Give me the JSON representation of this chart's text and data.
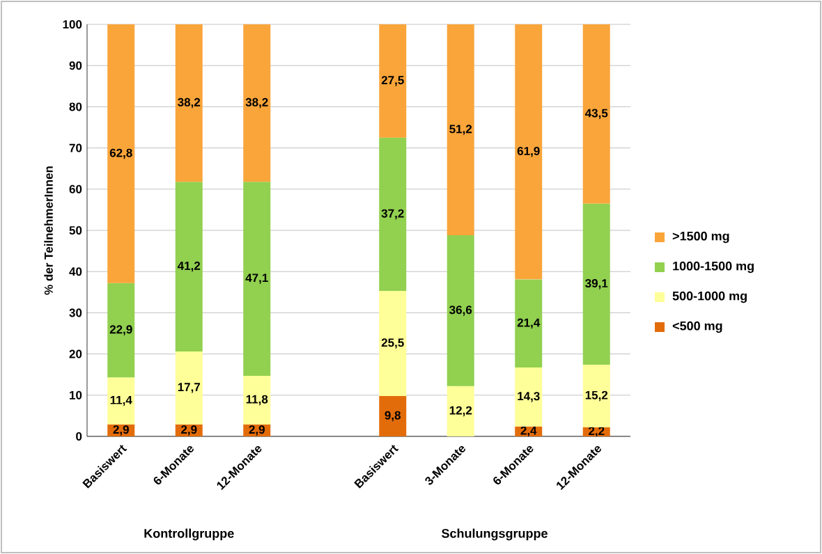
{
  "chart_data": {
    "type": "bar",
    "stacked": true,
    "ylabel": "% der TeilnehmerInnen",
    "categories": [
      "Basiswert",
      "6-Monate",
      "12-Monate",
      null,
      "Basiswert",
      "3-Monate",
      "6-Monate",
      "12-Monate"
    ],
    "series": [
      {
        "name": "<500 mg",
        "color": "#e36c0a",
        "values": [
          2.9,
          2.9,
          2.9,
          null,
          9.8,
          null,
          2.4,
          2.2
        ],
        "value_labels": [
          "2,9",
          "2,9",
          "2,9",
          null,
          "9,8",
          null,
          "2,4",
          "2,2"
        ]
      },
      {
        "name": "500-1000 mg",
        "color": "#ffff99",
        "values": [
          11.4,
          17.7,
          11.8,
          null,
          25.5,
          12.2,
          14.3,
          15.2
        ],
        "value_labels": [
          "11,4",
          "17,7",
          "11,8",
          null,
          "25,5",
          "12,2",
          "14,3",
          "15,2"
        ]
      },
      {
        "name": "1000-1500 mg",
        "color": "#92d050",
        "values": [
          22.9,
          41.2,
          47.1,
          null,
          37.2,
          36.6,
          21.4,
          39.1
        ],
        "value_labels": [
          "22,9",
          "41,2",
          "47,1",
          null,
          "37,2",
          "36,6",
          "21,4",
          "39,1"
        ]
      },
      {
        "name": ">1500 mg",
        "color": "#f9a53a",
        "values": [
          62.8,
          38.2,
          38.2,
          null,
          27.5,
          51.2,
          61.9,
          43.5
        ],
        "value_labels": [
          "62,8",
          "38,2",
          "38,2",
          null,
          "27,5",
          "51,2",
          "61,9",
          "43,5"
        ]
      }
    ],
    "ylim": [
      0,
      100
    ],
    "yticks": [
      0,
      10,
      20,
      30,
      40,
      50,
      60,
      70,
      80,
      90,
      100
    ],
    "grid": "y",
    "legend": "right",
    "annotations": [
      "Kontrollgruppe",
      "Schulungsgruppe"
    ]
  }
}
